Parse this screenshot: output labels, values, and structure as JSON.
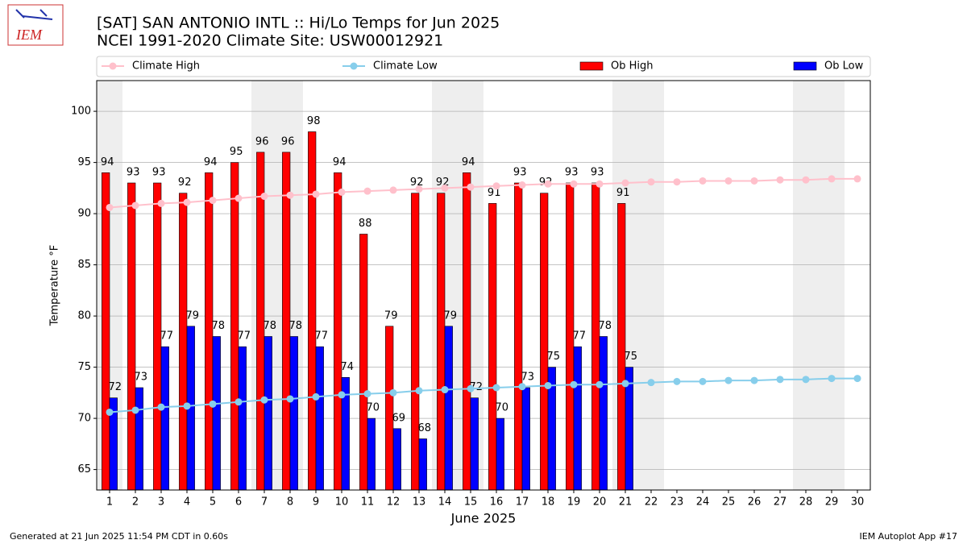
{
  "chart_data": {
    "type": "bar",
    "title": "[SAT] SAN ANTONIO INTL :: Hi/Lo Temps for Jun 2025",
    "subtitle": "NCEI 1991-2020 Climate Site: USW00012921",
    "logo_text": "IEM",
    "x_label": "June 2025",
    "y_label": "Temperature °F",
    "footer_left": "Generated at 21 Jun 2025 11:54 PM CDT in 0.60s",
    "footer_right": "IEM Autoplot App #17",
    "x": [
      1,
      2,
      3,
      4,
      5,
      6,
      7,
      8,
      9,
      10,
      11,
      12,
      13,
      14,
      15,
      16,
      17,
      18,
      19,
      20,
      21,
      22,
      23,
      24,
      25,
      26,
      27,
      28,
      29,
      30
    ],
    "xlim": [
      0.5,
      30.5
    ],
    "xticks": [
      1,
      2,
      3,
      4,
      5,
      6,
      7,
      8,
      9,
      10,
      11,
      12,
      13,
      14,
      15,
      16,
      17,
      18,
      19,
      20,
      21,
      22,
      23,
      24,
      25,
      26,
      27,
      28,
      29,
      30
    ],
    "ylim": [
      63,
      103
    ],
    "yticks": [
      65,
      70,
      75,
      80,
      85,
      90,
      95,
      100
    ],
    "grid": true,
    "weekend_shading": [
      1,
      7,
      8,
      14,
      15,
      21,
      22,
      28,
      29
    ],
    "series": [
      {
        "name": "Climate High",
        "type": "line",
        "color": "#ffc0cb",
        "values": [
          90.6,
          90.8,
          91.0,
          91.1,
          91.3,
          91.5,
          91.7,
          91.8,
          91.9,
          92.1,
          92.2,
          92.3,
          92.4,
          92.5,
          92.6,
          92.7,
          92.8,
          92.9,
          92.9,
          92.9,
          93.0,
          93.1,
          93.1,
          93.2,
          93.2,
          93.2,
          93.3,
          93.3,
          93.4,
          93.4
        ]
      },
      {
        "name": "Climate Low",
        "type": "line",
        "color": "#87ceeb",
        "values": [
          70.6,
          70.8,
          71.1,
          71.2,
          71.4,
          71.6,
          71.8,
          71.9,
          72.1,
          72.3,
          72.4,
          72.5,
          72.7,
          72.8,
          72.9,
          73.0,
          73.1,
          73.2,
          73.3,
          73.3,
          73.4,
          73.5,
          73.6,
          73.6,
          73.7,
          73.7,
          73.8,
          73.8,
          73.9,
          73.9
        ]
      },
      {
        "name": "Ob High",
        "type": "bar",
        "color": "#ff0000",
        "values": [
          94,
          93,
          93,
          92,
          94,
          95,
          96,
          96,
          98,
          94,
          88,
          79,
          92,
          92,
          94,
          91,
          93,
          92,
          93,
          93,
          91,
          null,
          null,
          null,
          null,
          null,
          null,
          null,
          null,
          null
        ]
      },
      {
        "name": "Ob Low",
        "type": "bar",
        "color": "#0000ff",
        "values": [
          72,
          73,
          77,
          79,
          78,
          77,
          78,
          78,
          77,
          74,
          70,
          69,
          68,
          79,
          72,
          70,
          73,
          75,
          77,
          78,
          75,
          null,
          null,
          null,
          null,
          null,
          null,
          null,
          null,
          null
        ]
      }
    ]
  }
}
